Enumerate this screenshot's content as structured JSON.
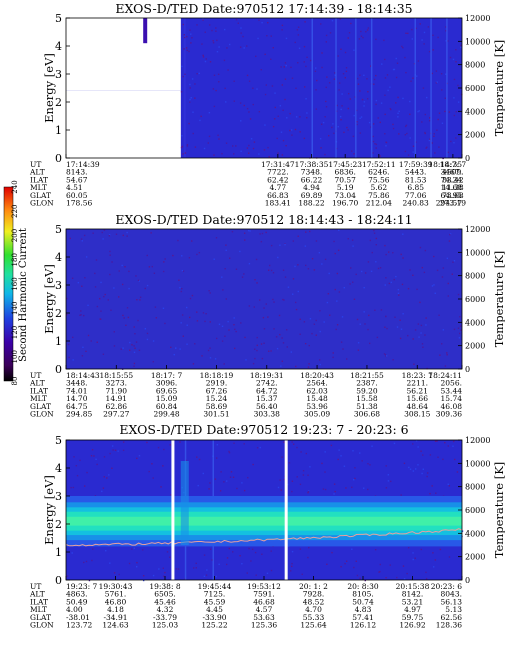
{
  "colorbar": {
    "label": "Second Harmonic Current",
    "ticks": [
      "80",
      "100",
      "120",
      "140",
      "160",
      "180",
      "200",
      "220",
      "240"
    ]
  },
  "chart_data": [
    {
      "type": "heatmap",
      "title": "EXOS-D/TED   Date:970512   17:14:39 - 18:14:35",
      "ylabel": "Energy [eV]",
      "y2label": "Temperature [K]",
      "ylim": [
        0,
        5
      ],
      "y_ticks": [
        "0",
        "1",
        "2",
        "3",
        "4",
        "5"
      ],
      "y2lim": [
        0,
        12000
      ],
      "y2_ticks": [
        "0",
        "2000",
        "4000",
        "6000",
        "8000",
        "10000",
        "12000"
      ],
      "x_ticks": [
        "17:14:39",
        "17:31:47",
        "17:38:35",
        "17:45:23",
        "17:52:11",
        "17:59:39",
        "18:7: 7",
        "18:14:35"
      ],
      "x_ticks_pos": [
        0,
        0.535,
        0.62,
        0.705,
        0.79,
        0.883,
        0.977,
        1
      ],
      "dominant_color": "#2a2ad0",
      "features": {
        "no_data_until": 0.29,
        "spike_at": [
          0.2,
          0.3
        ],
        "streaks": [
          0.62,
          0.68,
          0.73,
          0.77,
          0.88,
          0.92,
          0.96
        ],
        "white_gaps": []
      },
      "table": {
        "labels": [
          "UT",
          "ALT",
          "ILAT",
          "MLT",
          "GLAT",
          "GLON"
        ],
        "rows": [
          [
            "8143.",
            "7722.",
            "7348.",
            "6836.",
            "6246.",
            "5443.",
            "4509.",
            "3467."
          ],
          [
            "54.67",
            "62.42",
            "66.22",
            "70.57",
            "75.56",
            "81.53",
            "83.42",
            "74.24"
          ],
          [
            "4.51",
            "4.77",
            "4.94",
            "5.19",
            "5.62",
            "6.85",
            "11.38",
            "14.68"
          ],
          [
            "60.05",
            "66.83",
            "69.89",
            "73.04",
            "75.86",
            "77.06",
            "73.68",
            "64.95"
          ],
          [
            "178.56",
            "183.41",
            "188.22",
            "196.70",
            "212.04",
            "240.83",
            "273.19",
            "294.57"
          ]
        ],
        "ut_col_pos": [
          0,
          0.535,
          0.62,
          0.705,
          0.79,
          0.883,
          0.977,
          1
        ]
      }
    },
    {
      "type": "heatmap",
      "title": "EXOS-D/TED   Date:970512   18:14:43 - 18:24:11",
      "ylabel": "Energy [eV]",
      "y2label": "Temperature [K]",
      "ylim": [
        0,
        5
      ],
      "y_ticks": [
        "0",
        "1",
        "2",
        "3",
        "4",
        "5"
      ],
      "y2lim": [
        0,
        12000
      ],
      "y2_ticks": [
        "0",
        "2000",
        "4000",
        "6000",
        "8000",
        "10000",
        "12000"
      ],
      "x_ticks": [
        "18:14:43",
        "18:15:55",
        "18:17: 7",
        "18:18:19",
        "18:19:31",
        "18:20:43",
        "18:21:55",
        "18:23: 7",
        "18:24:11"
      ],
      "x_ticks_pos": [
        0,
        0.127,
        0.254,
        0.38,
        0.507,
        0.634,
        0.76,
        0.887,
        1
      ],
      "dominant_color": "#2e2ec8",
      "features": {
        "no_data_until": 0,
        "spike_at": [],
        "streaks": [],
        "white_gaps": []
      },
      "table": {
        "labels": [
          "UT",
          "ALT",
          "ILAT",
          "MLT",
          "GLAT",
          "GLON"
        ],
        "rows": [
          [
            "3448.",
            "3273.",
            "3096.",
            "2919.",
            "2742.",
            "2564.",
            "2387.",
            "2211.",
            "2056."
          ],
          [
            "74.01",
            "71.90",
            "69.65",
            "67.26",
            "64.72",
            "62.03",
            "59.20",
            "56.21",
            "53.44"
          ],
          [
            "14.70",
            "14.91",
            "15.09",
            "15.24",
            "15.37",
            "15.48",
            "15.58",
            "15.66",
            "15.74"
          ],
          [
            "64.75",
            "62.86",
            "60.84",
            "58.69",
            "56.40",
            "53.96",
            "51.38",
            "48.64",
            "46.08"
          ],
          [
            "294.85",
            "297.27",
            "299.48",
            "301.51",
            "303.38",
            "305.09",
            "306.68",
            "308.15",
            "309.36"
          ]
        ],
        "ut_col_pos": [
          0,
          0.127,
          0.254,
          0.38,
          0.507,
          0.634,
          0.76,
          0.887,
          1
        ]
      }
    },
    {
      "type": "heatmap",
      "title": "EXOS-D/TED   Date:970512   19:23: 7 - 20:23: 6",
      "ylabel": "Energy [eV]",
      "y2label": "Temperature [K]",
      "ylim": [
        0,
        5
      ],
      "y_ticks": [
        "0",
        "1",
        "2",
        "3",
        "4",
        "5"
      ],
      "y2lim": [
        0,
        12000
      ],
      "y2_ticks": [
        "0",
        "2000",
        "4000",
        "6000",
        "8000",
        "10000",
        "12000"
      ],
      "x_ticks": [
        "19:23: 7",
        "19:30:43",
        "19:38: 8",
        "19:45:44",
        "19:53:12",
        "20: 1: 2",
        "20: 8:30",
        "20:15:38",
        "20:23: 6"
      ],
      "x_ticks_pos": [
        0,
        0.125,
        0.25,
        0.375,
        0.5,
        0.625,
        0.75,
        0.875,
        1
      ],
      "dominant_color": "#2a2ad0",
      "features": {
        "no_data_until": 0,
        "band_center_ev": 2.1,
        "band_halfwidth_ev": 0.45,
        "spike_at": [],
        "streaks": [
          0.3,
          0.37
        ],
        "white_gaps": [
          0.27,
          0.556
        ]
      },
      "table": {
        "labels": [
          "UT",
          "ALT",
          "ILAT",
          "MLT",
          "GLAT",
          "GLON"
        ],
        "rows": [
          [
            "4863.",
            "5761.",
            "6505.",
            "7125.",
            "7591.",
            "7928.",
            "8105.",
            "8142.",
            "8043."
          ],
          [
            "50.49",
            "46.80",
            "45.46",
            "45.59",
            "46.68",
            "48.52",
            "50.74",
            "53.21",
            "56.13"
          ],
          [
            "4.00",
            "4.18",
            "4.32",
            "4.45",
            "4.57",
            "4.70",
            "4.83",
            "4.97",
            "5.13"
          ],
          [
            "-38.01",
            "-34.91",
            "-33.79",
            "-33.90",
            "53.63",
            "55.33",
            "57.41",
            "59.75",
            "62.56"
          ],
          [
            "123.72",
            "124.63",
            "125.03",
            "125.22",
            "125.36",
            "125.64",
            "126.12",
            "126.92",
            "128.36"
          ]
        ],
        "ut_col_pos": [
          0,
          0.125,
          0.25,
          0.375,
          0.5,
          0.625,
          0.75,
          0.875,
          1
        ]
      }
    }
  ]
}
